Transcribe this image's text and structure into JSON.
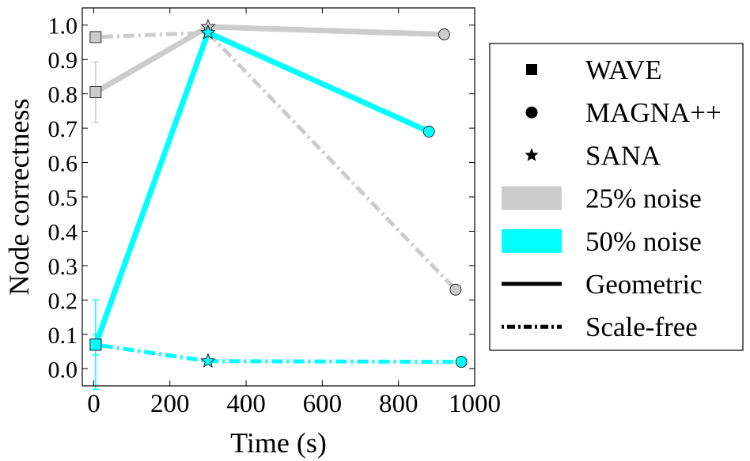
{
  "chart_data": {
    "type": "line",
    "xlabel": "Time (s)",
    "ylabel": "Node correctness",
    "xlim": [
      -30,
      1000
    ],
    "ylim": [
      -0.05,
      1.05
    ],
    "xticks": [
      "0",
      "200",
      "400",
      "600",
      "800",
      "1000"
    ],
    "xtick_values": [
      0,
      200,
      400,
      600,
      800,
      1000
    ],
    "yticks": [
      "0.0",
      "0.1",
      "0.2",
      "0.3",
      "0.4",
      "0.5",
      "0.6",
      "0.7",
      "0.8",
      "0.9",
      "1.0"
    ],
    "ytick_values": [
      0.0,
      0.1,
      0.2,
      0.3,
      0.4,
      0.5,
      0.6,
      0.7,
      0.8,
      0.9,
      1.0
    ],
    "colors": {
      "noise25": "#cccccc",
      "noise50": "#00ffff",
      "axis": "#000000"
    },
    "series": [
      {
        "name": "25% noise, Geometric",
        "noise": "25% noise",
        "network": "Geometric",
        "color": "#cccccc",
        "style": "solid",
        "points": [
          {
            "method": "WAVE",
            "x": 5,
            "y": 0.805,
            "err": 0.088
          },
          {
            "method": "SANA",
            "x": 300,
            "y": 0.995
          },
          {
            "method": "MAGNA++",
            "x": 920,
            "y": 0.973
          }
        ]
      },
      {
        "name": "25% noise, Scale-free",
        "noise": "25% noise",
        "network": "Scale-free",
        "color": "#cccccc",
        "style": "dashdot",
        "points": [
          {
            "method": "WAVE",
            "x": 5,
            "y": 0.965,
            "err": 0.015
          },
          {
            "method": "SANA",
            "x": 300,
            "y": 0.978
          },
          {
            "method": "MAGNA++",
            "x": 950,
            "y": 0.23
          }
        ]
      },
      {
        "name": "50% noise, Geometric",
        "noise": "50% noise",
        "network": "Geometric",
        "color": "#00ffff",
        "style": "solid",
        "points": [
          {
            "method": "WAVE",
            "x": 5,
            "y": 0.07,
            "err": 0.13
          },
          {
            "method": "SANA",
            "x": 300,
            "y": 0.978
          },
          {
            "method": "MAGNA++",
            "x": 880,
            "y": 0.69
          }
        ]
      },
      {
        "name": "50% noise, Scale-free",
        "noise": "50% noise",
        "network": "Scale-free",
        "color": "#00ffff",
        "style": "dashdot",
        "points": [
          {
            "method": "WAVE",
            "x": 5,
            "y": 0.07,
            "err": 0.03
          },
          {
            "method": "SANA",
            "x": 300,
            "y": 0.022
          },
          {
            "method": "MAGNA++",
            "x": 965,
            "y": 0.02
          }
        ]
      }
    ],
    "legend": {
      "position": "right",
      "entries": [
        {
          "label": "WAVE",
          "kind": "marker",
          "marker": "square"
        },
        {
          "label": "MAGNA++",
          "kind": "marker",
          "marker": "circle"
        },
        {
          "label": "SANA",
          "kind": "marker",
          "marker": "star"
        },
        {
          "label": "25% noise",
          "kind": "band",
          "color": "#cccccc"
        },
        {
          "label": "50% noise",
          "kind": "band",
          "color": "#00ffff"
        },
        {
          "label": "Geometric",
          "kind": "line",
          "style": "solid"
        },
        {
          "label": "Scale-free",
          "kind": "line",
          "style": "dashdot"
        }
      ]
    }
  }
}
